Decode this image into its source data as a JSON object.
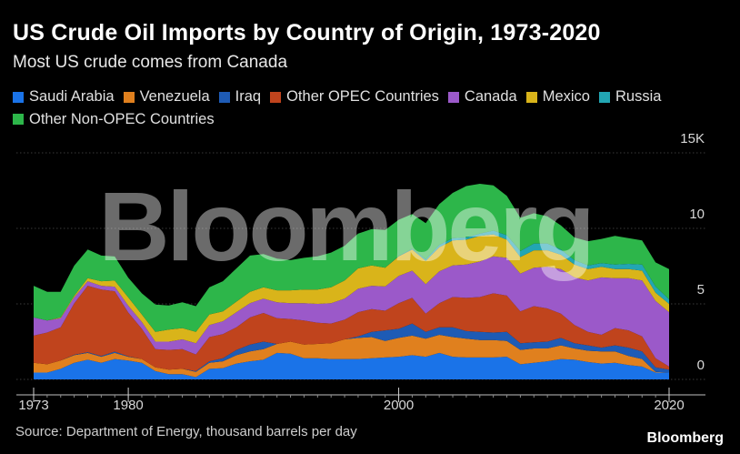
{
  "header": {
    "title": "US Crude Oil Imports by Country of Origin, 1973-2020",
    "subtitle": "Most US crude comes from Canada"
  },
  "footer": {
    "source": "Source: Department of Energy, thousand barrels per day",
    "logo": "Bloomberg"
  },
  "watermark": "Bloomberg",
  "chart_data": {
    "type": "area",
    "stacked": true,
    "x": [
      1973,
      1974,
      1975,
      1976,
      1977,
      1978,
      1979,
      1980,
      1981,
      1982,
      1983,
      1984,
      1985,
      1986,
      1987,
      1988,
      1989,
      1990,
      1991,
      1992,
      1993,
      1994,
      1995,
      1996,
      1997,
      1998,
      1999,
      2000,
      2001,
      2002,
      2003,
      2004,
      2005,
      2006,
      2007,
      2008,
      2009,
      2010,
      2011,
      2012,
      2013,
      2014,
      2015,
      2016,
      2017,
      2018,
      2019,
      2020
    ],
    "xticks": [
      "1973",
      "1980",
      "2000",
      "2020"
    ],
    "yticks": [
      "0",
      "5",
      "10",
      "15K"
    ],
    "ylim": [
      0,
      15
    ],
    "grid": true,
    "legend_position": "top",
    "series": [
      {
        "name": "Saudi Arabia",
        "color": "#1a73e8",
        "values": [
          0.45,
          0.45,
          0.7,
          1.1,
          1.3,
          1.1,
          1.35,
          1.25,
          1.1,
          0.55,
          0.35,
          0.35,
          0.15,
          0.7,
          0.75,
          1.05,
          1.2,
          1.3,
          1.75,
          1.7,
          1.4,
          1.4,
          1.35,
          1.35,
          1.35,
          1.4,
          1.45,
          1.5,
          1.6,
          1.5,
          1.75,
          1.5,
          1.45,
          1.45,
          1.45,
          1.5,
          1.0,
          1.1,
          1.2,
          1.35,
          1.3,
          1.15,
          1.05,
          1.1,
          0.95,
          0.85,
          0.45,
          0.45
        ]
      },
      {
        "name": "Venezuela",
        "color": "#e0801e",
        "values": [
          0.65,
          0.55,
          0.55,
          0.5,
          0.45,
          0.4,
          0.4,
          0.25,
          0.25,
          0.25,
          0.3,
          0.35,
          0.35,
          0.4,
          0.45,
          0.55,
          0.65,
          0.7,
          0.6,
          0.8,
          0.9,
          0.95,
          1.05,
          1.3,
          1.4,
          1.4,
          1.1,
          1.25,
          1.3,
          1.2,
          1.2,
          1.3,
          1.25,
          1.15,
          1.15,
          1.05,
          0.95,
          0.95,
          0.85,
          0.9,
          0.75,
          0.75,
          0.8,
          0.75,
          0.6,
          0.5,
          0.05,
          0.0
        ]
      },
      {
        "name": "Iraq",
        "color": "#1e5bb5",
        "values": [
          0.0,
          0.0,
          0.0,
          0.03,
          0.05,
          0.05,
          0.09,
          0.03,
          0.0,
          0.0,
          0.0,
          0.0,
          0.05,
          0.1,
          0.2,
          0.35,
          0.45,
          0.5,
          0.0,
          0.0,
          0.0,
          0.0,
          0.0,
          0.0,
          0.1,
          0.35,
          0.7,
          0.6,
          0.8,
          0.45,
          0.5,
          0.65,
          0.5,
          0.55,
          0.5,
          0.6,
          0.45,
          0.4,
          0.45,
          0.5,
          0.35,
          0.35,
          0.25,
          0.4,
          0.55,
          0.5,
          0.3,
          0.2
        ]
      },
      {
        "name": "Other OPEC Countries",
        "color": "#c0441d",
        "values": [
          1.8,
          2.1,
          2.2,
          3.4,
          4.4,
          4.4,
          4.0,
          2.9,
          2.0,
          1.2,
          1.3,
          1.3,
          1.1,
          1.6,
          1.6,
          1.5,
          1.8,
          1.9,
          1.7,
          1.5,
          1.6,
          1.4,
          1.3,
          1.3,
          1.6,
          1.5,
          1.3,
          1.7,
          1.7,
          1.2,
          1.6,
          2.0,
          2.2,
          2.3,
          2.6,
          2.4,
          2.1,
          2.4,
          2.2,
          1.6,
          1.2,
          0.9,
          0.85,
          1.15,
          1.15,
          1.0,
          0.6,
          0.2
        ]
      },
      {
        "name": "Canada",
        "color": "#9b59c9",
        "values": [
          1.2,
          0.8,
          0.6,
          0.4,
          0.3,
          0.25,
          0.3,
          0.45,
          0.45,
          0.5,
          0.55,
          0.65,
          0.75,
          0.8,
          0.85,
          1.0,
          0.95,
          0.95,
          1.05,
          1.05,
          1.15,
          1.25,
          1.35,
          1.4,
          1.55,
          1.55,
          1.6,
          1.8,
          1.8,
          1.95,
          2.1,
          2.1,
          2.2,
          2.35,
          2.45,
          2.5,
          2.5,
          2.55,
          2.75,
          2.95,
          3.15,
          3.4,
          3.8,
          3.3,
          3.45,
          3.7,
          3.8,
          3.6
        ]
      },
      {
        "name": "Mexico",
        "color": "#d9b41a",
        "values": [
          0.0,
          0.0,
          0.05,
          0.1,
          0.2,
          0.3,
          0.4,
          0.55,
          0.5,
          0.65,
          0.8,
          0.75,
          0.75,
          0.7,
          0.65,
          0.7,
          0.75,
          0.75,
          0.8,
          0.85,
          0.9,
          0.95,
          1.05,
          1.2,
          1.35,
          1.35,
          1.25,
          1.3,
          1.4,
          1.55,
          1.6,
          1.65,
          1.65,
          1.7,
          1.45,
          1.2,
          1.1,
          1.15,
          1.1,
          0.95,
          0.85,
          0.75,
          0.7,
          0.6,
          0.6,
          0.65,
          0.55,
          0.55
        ]
      },
      {
        "name": "Russia",
        "color": "#22a6b3",
        "values": [
          0.0,
          0.0,
          0.0,
          0.0,
          0.0,
          0.0,
          0.0,
          0.0,
          0.0,
          0.0,
          0.0,
          0.0,
          0.0,
          0.0,
          0.0,
          0.0,
          0.0,
          0.0,
          0.0,
          0.0,
          0.0,
          0.0,
          0.0,
          0.0,
          0.0,
          0.0,
          0.0,
          0.02,
          0.05,
          0.1,
          0.15,
          0.15,
          0.15,
          0.15,
          0.25,
          0.3,
          0.4,
          0.45,
          0.45,
          0.35,
          0.3,
          0.25,
          0.25,
          0.3,
          0.35,
          0.4,
          0.4,
          0.3
        ]
      },
      {
        "name": "Other Non-OPEC Countries",
        "color": "#2db64a",
        "values": [
          2.1,
          1.9,
          1.7,
          2.0,
          1.9,
          1.7,
          1.6,
          1.3,
          1.4,
          1.8,
          1.6,
          1.7,
          1.7,
          1.8,
          2.0,
          2.2,
          2.4,
          2.2,
          2.1,
          2.0,
          2.1,
          2.2,
          2.3,
          2.3,
          2.3,
          2.4,
          2.5,
          2.4,
          2.3,
          2.4,
          2.7,
          3.0,
          3.4,
          3.3,
          3.0,
          2.6,
          2.2,
          2.0,
          1.8,
          1.6,
          1.5,
          1.6,
          1.6,
          1.9,
          1.7,
          1.6,
          1.6,
          2.0
        ]
      }
    ]
  }
}
